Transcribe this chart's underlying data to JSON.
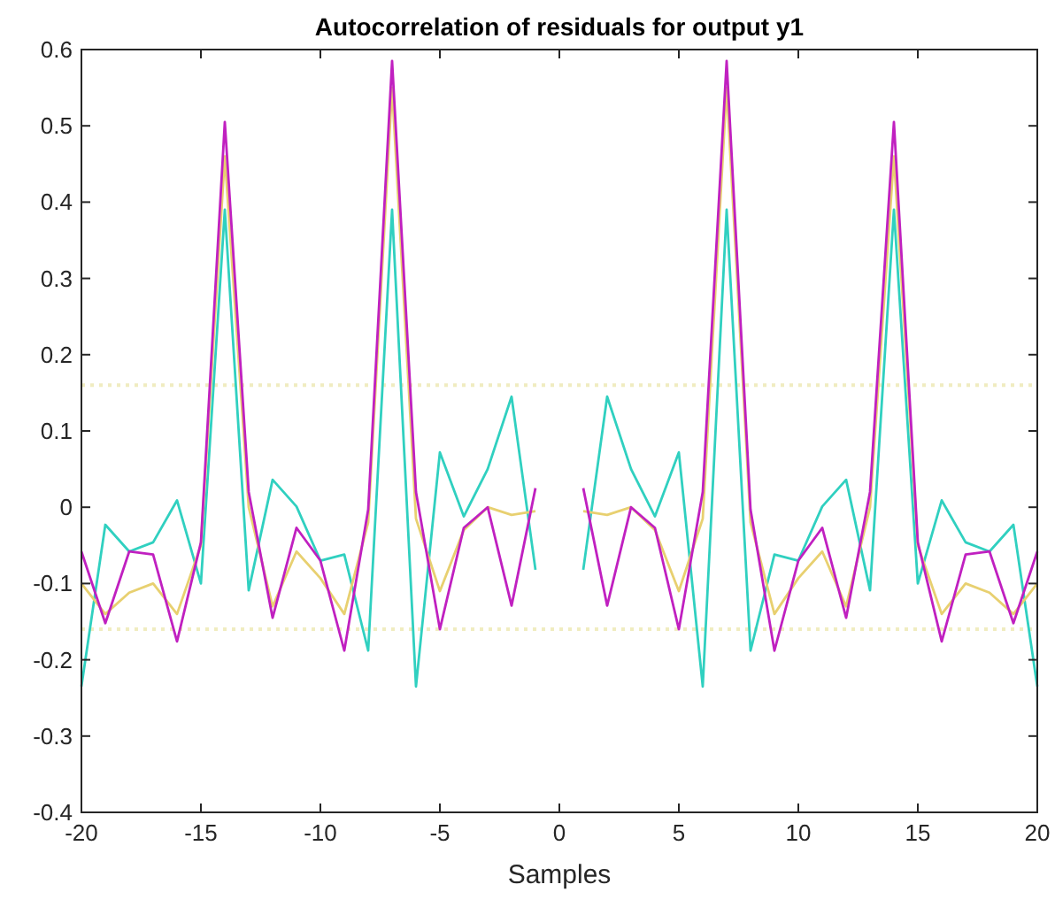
{
  "chart_data": {
    "type": "line",
    "title": "Autocorrelation of residuals for output y1",
    "xlabel": "Samples",
    "x": [
      -20,
      -19,
      -18,
      -17,
      -16,
      -15,
      -14,
      -13,
      -12,
      -11,
      -10,
      -9,
      -8,
      -7,
      -6,
      -5,
      -4,
      -3,
      -2,
      -1,
      0,
      1,
      2,
      3,
      4,
      5,
      6,
      7,
      8,
      9,
      10,
      11,
      12,
      13,
      14,
      15,
      16,
      17,
      18,
      19,
      20
    ],
    "series": [
      {
        "color": "#30d0c0",
        "values": [
          -0.235,
          -0.023,
          -0.058,
          -0.046,
          0.009,
          -0.1,
          0.39,
          -0.109,
          0.036,
          0.001,
          -0.07,
          -0.062,
          -0.188,
          0.39,
          -0.235,
          0.072,
          -0.012,
          0.05,
          0.145,
          -0.082,
          null,
          -0.082,
          0.145,
          0.05,
          -0.012,
          0.072,
          -0.235,
          0.39,
          -0.188,
          -0.062,
          -0.07,
          0.001,
          0.036,
          -0.109,
          0.39,
          -0.1,
          0.009,
          -0.046,
          -0.058,
          -0.023,
          -0.235
        ]
      },
      {
        "color": "#e8d070",
        "values": [
          -0.1,
          -0.14,
          -0.112,
          -0.1,
          -0.14,
          -0.05,
          0.46,
          0.0,
          -0.13,
          -0.058,
          -0.093,
          -0.14,
          -0.02,
          0.55,
          -0.015,
          -0.11,
          -0.03,
          0.0,
          -0.01,
          -0.005,
          null,
          -0.005,
          -0.01,
          0.0,
          -0.03,
          -0.11,
          -0.015,
          0.55,
          -0.02,
          -0.14,
          -0.093,
          -0.058,
          -0.13,
          0.0,
          0.46,
          -0.05,
          -0.14,
          -0.1,
          -0.112,
          -0.14,
          -0.1
        ]
      },
      {
        "color": "#c020c0",
        "values": [
          -0.058,
          -0.152,
          -0.058,
          -0.062,
          -0.176,
          -0.046,
          0.505,
          0.02,
          -0.145,
          -0.027,
          -0.07,
          -0.188,
          -0.003,
          0.585,
          0.02,
          -0.16,
          -0.027,
          0.0,
          -0.129,
          0.025,
          null,
          0.025,
          -0.129,
          0.0,
          -0.027,
          -0.16,
          0.02,
          0.585,
          -0.003,
          -0.188,
          -0.07,
          -0.027,
          -0.145,
          0.02,
          0.505,
          -0.046,
          -0.176,
          -0.062,
          -0.058,
          -0.152,
          -0.058
        ]
      }
    ],
    "xlim": [
      -20,
      20
    ],
    "xticks": [
      -20,
      -15,
      -10,
      -5,
      0,
      5,
      10,
      15,
      20
    ],
    "ylim": [
      -0.4,
      0.6
    ],
    "yticks": [
      -0.4,
      -0.3,
      -0.2,
      -0.1,
      0,
      0.1,
      0.2,
      0.3,
      0.4,
      0.5,
      0.6
    ],
    "ref_lines": [
      {
        "axis": "y",
        "value": 0.16,
        "color": "#f0ecc0",
        "line_style": "dotted"
      },
      {
        "axis": "y",
        "value": -0.16,
        "color": "#f0ecc0",
        "line_style": "dotted"
      }
    ],
    "grid": false
  }
}
